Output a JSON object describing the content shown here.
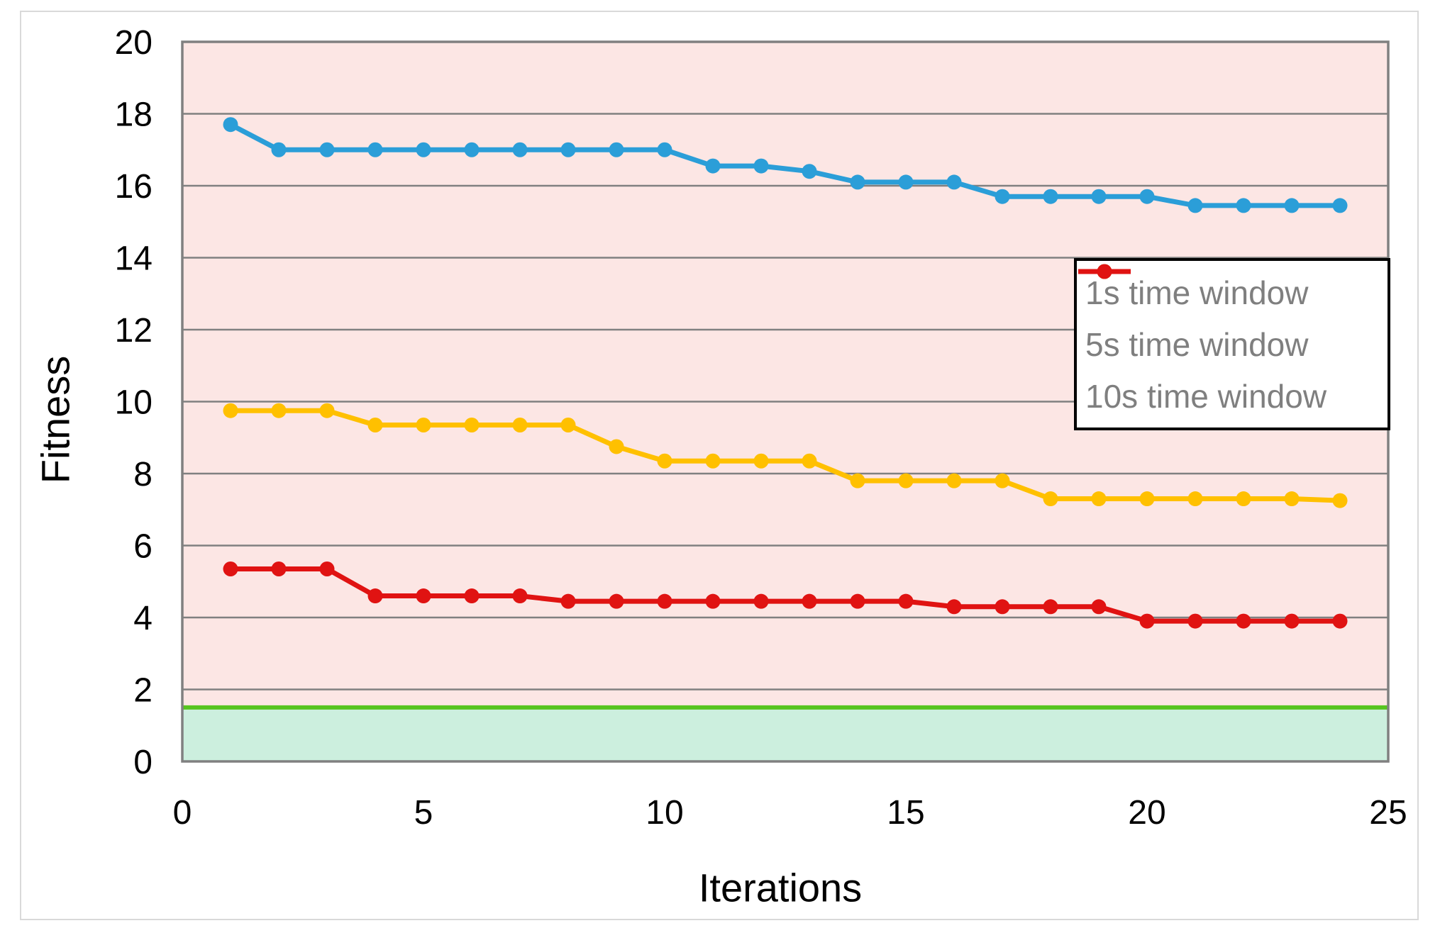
{
  "chart_data": {
    "type": "line",
    "title": "",
    "xlabel": "Iterations",
    "ylabel": "Fitness",
    "xlim": [
      0,
      25
    ],
    "ylim": [
      0,
      20
    ],
    "x_ticks": [
      0,
      5,
      10,
      15,
      20,
      25
    ],
    "y_ticks": [
      0,
      2,
      4,
      6,
      8,
      10,
      12,
      14,
      16,
      18,
      20
    ],
    "grid": "horizontal-only",
    "legend_position": "inside-upper-right",
    "x": [
      1,
      2,
      3,
      4,
      5,
      6,
      7,
      8,
      9,
      10,
      11,
      12,
      13,
      14,
      15,
      16,
      17,
      18,
      19,
      20,
      21,
      22,
      23,
      24
    ],
    "series": [
      {
        "name": "1s time window",
        "color": "#2b9ed8",
        "values": [
          17.7,
          17.0,
          17.0,
          17.0,
          17.0,
          17.0,
          17.0,
          17.0,
          17.0,
          17.0,
          16.55,
          16.55,
          16.4,
          16.1,
          16.1,
          16.1,
          15.7,
          15.7,
          15.7,
          15.7,
          15.45,
          15.45,
          15.45,
          15.45
        ]
      },
      {
        "name": "5s time window",
        "color": "#ffc000",
        "values": [
          9.75,
          9.75,
          9.75,
          9.35,
          9.35,
          9.35,
          9.35,
          9.35,
          8.75,
          8.35,
          8.35,
          8.35,
          8.35,
          7.8,
          7.8,
          7.8,
          7.8,
          7.3,
          7.3,
          7.3,
          7.3,
          7.3,
          7.3,
          7.25
        ]
      },
      {
        "name": "10s time window",
        "color": "#e01312",
        "values": [
          5.35,
          5.35,
          5.35,
          4.6,
          4.6,
          4.6,
          4.6,
          4.45,
          4.45,
          4.45,
          4.45,
          4.45,
          4.45,
          4.45,
          4.45,
          4.3,
          4.3,
          4.3,
          4.3,
          3.9,
          3.9,
          3.9,
          3.9,
          3.9
        ]
      }
    ],
    "threshold_line": {
      "value": 1.5,
      "color": "#57c41f"
    },
    "colors": {
      "plot_bg_above_threshold": "#fce6e4",
      "plot_bg_below_threshold": "#ccefde",
      "gridline": "#808080",
      "plot_border": "#808080",
      "tick_text": "#000000",
      "legend_text": "#7f7f7f",
      "outer_frame": "#d9d9d9"
    }
  }
}
